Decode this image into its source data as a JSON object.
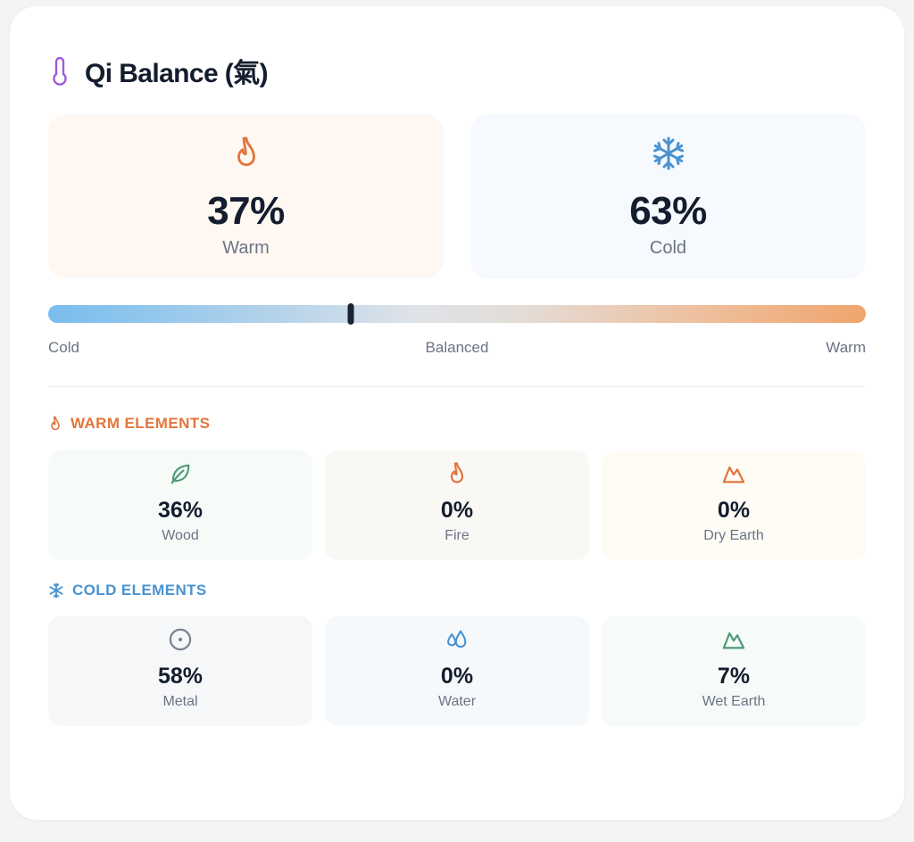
{
  "header": {
    "title": "Qi Balance (氣)",
    "icon": "thermometer-icon"
  },
  "summary": {
    "warm": {
      "percent": "37%",
      "label": "Warm",
      "icon": "flame-icon"
    },
    "cold": {
      "percent": "63%",
      "label": "Cold",
      "icon": "snowflake-icon"
    }
  },
  "scale": {
    "left_label": "Cold",
    "center_label": "Balanced",
    "right_label": "Warm",
    "position_fraction": 0.37
  },
  "warm_elements": {
    "heading": "WARM ELEMENTS",
    "items": [
      {
        "percent": "36%",
        "label": "Wood",
        "icon": "leaf-icon"
      },
      {
        "percent": "0%",
        "label": "Fire",
        "icon": "flame-icon"
      },
      {
        "percent": "0%",
        "label": "Dry Earth",
        "icon": "mountain-icon"
      }
    ]
  },
  "cold_elements": {
    "heading": "COLD ELEMENTS",
    "items": [
      {
        "percent": "58%",
        "label": "Metal",
        "icon": "circle-dot-icon"
      },
      {
        "percent": "0%",
        "label": "Water",
        "icon": "droplets-icon"
      },
      {
        "percent": "7%",
        "label": "Wet Earth",
        "icon": "mountain-icon"
      }
    ]
  },
  "colors": {
    "warm_accent": "#e2753b",
    "cold_accent": "#4a93d0",
    "wood_green": "#4f9a76",
    "metal_gray": "#7a8290",
    "text_dark": "#141d2e",
    "text_muted": "#6b7484"
  }
}
